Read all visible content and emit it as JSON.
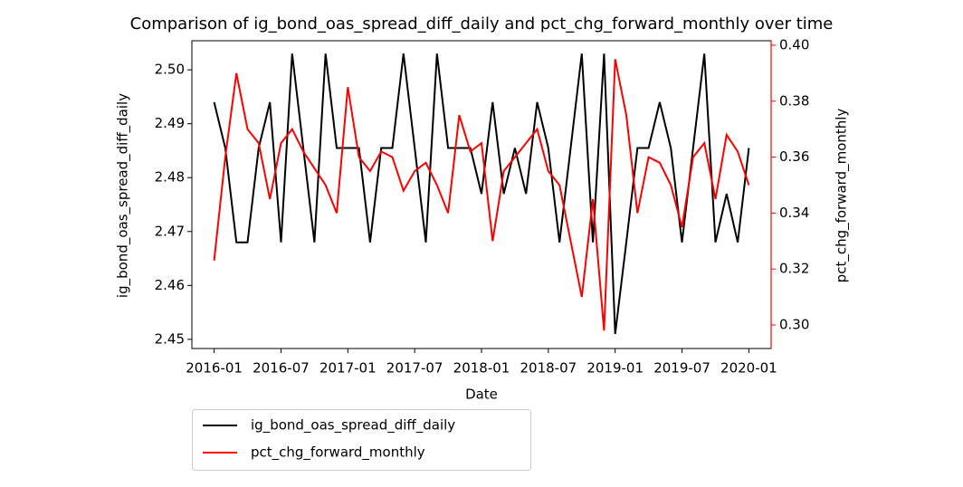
{
  "chart_data": {
    "type": "line",
    "title": "Comparison of ig_bond_oas_spread_diff_daily and pct_chg_forward_monthly over time",
    "x_label": "Date",
    "y_label": "ig_bond_oas_spread_diff_daily",
    "y2_label": "pct_chg_forward_monthly",
    "x": [
      "2016-01",
      "2016-02",
      "2016-03",
      "2016-04",
      "2016-05",
      "2016-06",
      "2016-07",
      "2016-08",
      "2016-09",
      "2016-10",
      "2016-11",
      "2016-12",
      "2017-01",
      "2017-02",
      "2017-03",
      "2017-04",
      "2017-05",
      "2017-06",
      "2017-07",
      "2017-08",
      "2017-09",
      "2017-10",
      "2017-11",
      "2017-12",
      "2018-01",
      "2018-02",
      "2018-03",
      "2018-04",
      "2018-05",
      "2018-06",
      "2018-07",
      "2018-08",
      "2018-09",
      "2018-10",
      "2018-11",
      "2018-12",
      "2019-01",
      "2019-02",
      "2019-03",
      "2019-04",
      "2019-05",
      "2019-06",
      "2019-07",
      "2019-08",
      "2019-09",
      "2019-10",
      "2019-11",
      "2019-12",
      "2020-01"
    ],
    "series": [
      {
        "name": "ig_bond_oas_spread_diff_daily",
        "color": "#000000",
        "axis": "y",
        "values": [
          2.494,
          2.4855,
          2.468,
          2.468,
          2.4855,
          2.494,
          2.468,
          2.503,
          2.4855,
          2.468,
          2.503,
          2.4855,
          2.4855,
          2.4855,
          2.468,
          2.4855,
          2.4855,
          2.503,
          2.4855,
          2.468,
          2.503,
          2.4855,
          2.4855,
          2.4855,
          2.477,
          2.494,
          2.477,
          2.4855,
          2.477,
          2.494,
          2.4855,
          2.468,
          2.4855,
          2.503,
          2.468,
          2.503,
          2.451,
          2.468,
          2.4855,
          2.4855,
          2.494,
          2.4855,
          2.468,
          2.4855,
          2.503,
          2.468,
          2.477,
          2.468,
          2.4855
        ]
      },
      {
        "name": "pct_chg_forward_monthly",
        "color": "#ff0000",
        "axis": "y2",
        "values": [
          0.323,
          0.36,
          0.39,
          0.37,
          0.365,
          0.345,
          0.365,
          0.37,
          0.362,
          0.356,
          0.35,
          0.34,
          0.385,
          0.36,
          0.355,
          0.362,
          0.36,
          0.348,
          0.355,
          0.358,
          0.35,
          0.34,
          0.375,
          0.362,
          0.365,
          0.33,
          0.355,
          0.36,
          0.365,
          0.37,
          0.355,
          0.35,
          0.33,
          0.31,
          0.345,
          0.298,
          0.395,
          0.375,
          0.34,
          0.36,
          0.358,
          0.35,
          0.335,
          0.36,
          0.365,
          0.345,
          0.368,
          0.362,
          0.35
        ]
      }
    ],
    "xlim": [
      "2015-11",
      "2020-03"
    ],
    "xticks": [
      "2016-01",
      "2016-07",
      "2017-01",
      "2017-07",
      "2018-01",
      "2018-07",
      "2019-01",
      "2019-07",
      "2020-01"
    ],
    "ylim": [
      2.4483,
      2.5054
    ],
    "yticks": [
      2.45,
      2.46,
      2.47,
      2.48,
      2.49,
      {
        "value": 2.5,
        "label": "2.50"
      }
    ],
    "y2lim": [
      0.2916,
      0.4016
    ],
    "y2ticks": [
      {
        "value": 0.3,
        "label": "0.30"
      },
      0.32,
      0.34,
      0.36,
      0.38,
      {
        "value": 0.4,
        "label": "0.40"
      }
    ],
    "y2_color": "#ff0000",
    "legend": "below"
  }
}
